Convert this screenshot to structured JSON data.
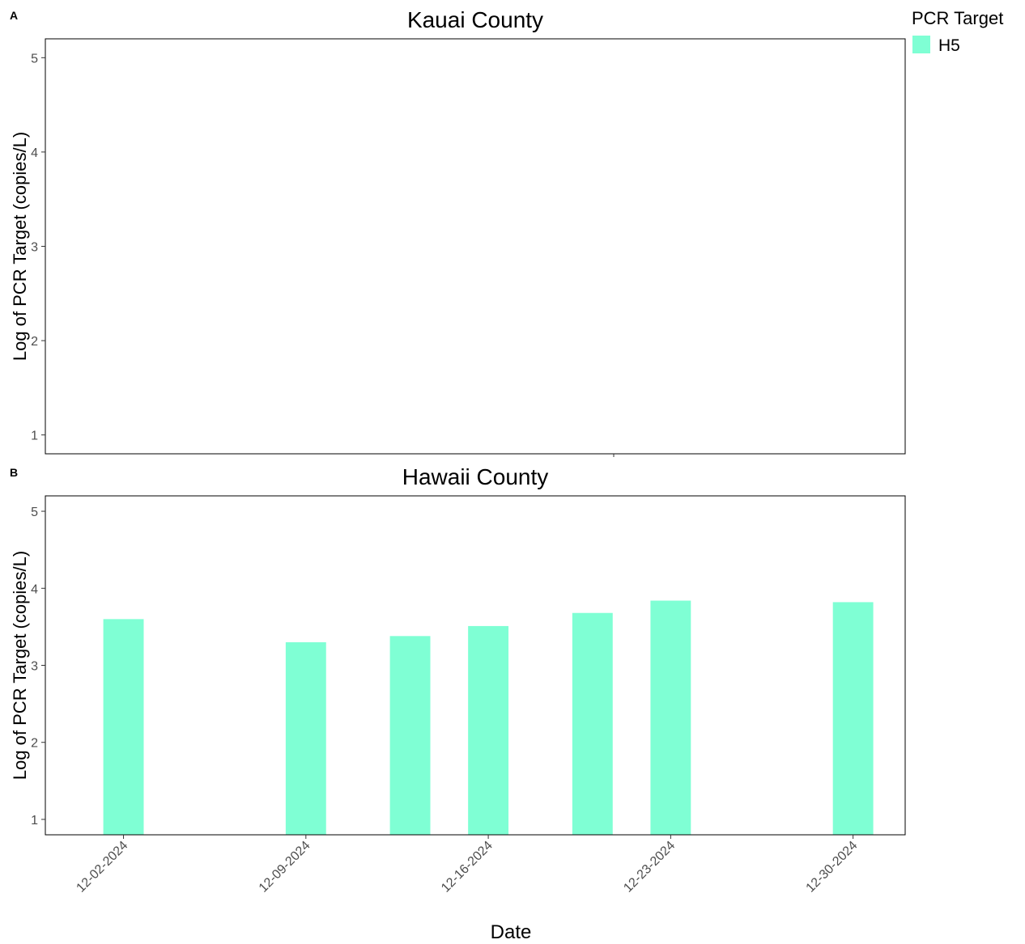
{
  "legend": {
    "title": "PCR Target",
    "items": [
      {
        "label": "H5",
        "color": "#7FFFD4"
      }
    ]
  },
  "chart_data": [
    {
      "panel_label": "A",
      "type": "bar",
      "title": "Kauai County",
      "ylabel": "Log of PCR Target (copies/L)",
      "xlabel": "",
      "yticks": [
        1,
        2,
        3,
        4,
        5
      ],
      "ylim": [
        0.8,
        5.2
      ],
      "xlim": [
        "2024-11-29",
        "2025-01-01"
      ],
      "xticks": [],
      "series": [
        {
          "name": "H5",
          "color": "#7FFFD4",
          "points": []
        }
      ]
    },
    {
      "panel_label": "B",
      "type": "bar",
      "title": "Hawaii County",
      "ylabel": "Log of PCR Target (copies/L)",
      "xlabel": "Date",
      "yticks": [
        1,
        2,
        3,
        4,
        5
      ],
      "ylim": [
        0.8,
        5.2
      ],
      "xlim": [
        "2024-11-29",
        "2025-01-01"
      ],
      "xticks": [
        "12-02-2024",
        "12-09-2024",
        "12-16-2024",
        "12-23-2024",
        "12-30-2024"
      ],
      "series": [
        {
          "name": "H5",
          "color": "#7FFFD4",
          "points": [
            {
              "x": "2024-12-02",
              "y": 3.6
            },
            {
              "x": "2024-12-09",
              "y": 3.3
            },
            {
              "x": "2024-12-13",
              "y": 3.38
            },
            {
              "x": "2024-12-16",
              "y": 3.51
            },
            {
              "x": "2024-12-20",
              "y": 3.68
            },
            {
              "x": "2024-12-23",
              "y": 3.84
            },
            {
              "x": "2024-12-30",
              "y": 3.82
            }
          ]
        }
      ]
    }
  ]
}
